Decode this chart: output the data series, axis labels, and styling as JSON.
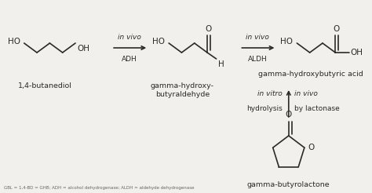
{
  "bg_color": "#f2f0ed",
  "line_color": "#2a2a2a",
  "text_color": "#2a2a2a",
  "fig_width": 4.74,
  "fig_height": 2.46,
  "dpi": 100,
  "fs_mol": 7.5,
  "fs_label": 6.8,
  "fs_arrow": 6.5,
  "lw": 1.2,
  "mol1_label": "1,4-butanediol",
  "mol2_label": "gamma-hydroxy-\nbutyraldehyde",
  "mol3_label": "gamma-hydroxybutyric acid",
  "mol4_label": "gamma-butyrolactone",
  "arrow1_top": "in vivo",
  "arrow1_bot": "ADH",
  "arrow2_top": "in vivo",
  "arrow2_bot": "ALDH",
  "arrow3_left_top": "in vitro",
  "arrow3_left_bot": "hydrolysis",
  "arrow3_right_top": "in vivo",
  "arrow3_right_bot": "by lactonase",
  "caption": "GBL = 1,4-BD = GHB; ADH = alcohol dehydrogenase; ALDH = aldehyde dehydrogenase"
}
